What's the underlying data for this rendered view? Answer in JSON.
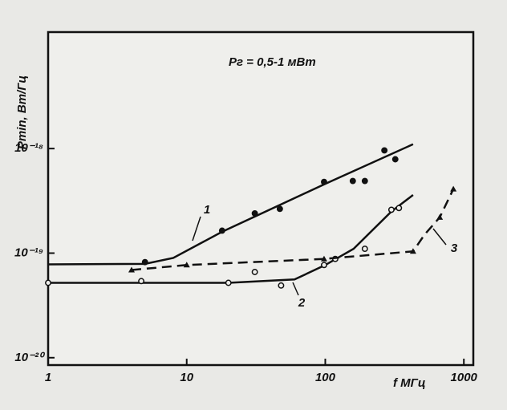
{
  "chart_data": {
    "type": "scatter",
    "title": "Pг = 0,5-1 мВт",
    "x_label": "f МГц",
    "y_label": "Pmin, Вт/Гц",
    "log_x": true,
    "log_y": true,
    "xlim": [
      1,
      1170
    ],
    "ylim": [
      8.5e-21,
      1.3e-17
    ],
    "xticks": [
      1,
      10,
      100,
      1000
    ],
    "yticks": [
      {
        "value": 1e-20,
        "label": "10⁻²⁰"
      },
      {
        "value": 1e-19,
        "label": "10⁻¹⁹"
      },
      {
        "value": 1e-18,
        "label": "10⁻¹⁸"
      }
    ],
    "series": [
      {
        "name": "1",
        "color": "#111111",
        "marker": "filled",
        "dash": false,
        "x": [
          5,
          18,
          31,
          47,
          98,
          158,
          193,
          267,
          320
        ],
        "values": [
          8.2e-20,
          1.64e-19,
          2.4e-19,
          2.65e-19,
          4.8e-19,
          4.9e-19,
          4.9e-19,
          9.6e-19,
          7.9e-19
        ],
        "curve": {
          "x": [
            1,
            5,
            8,
            18,
            100,
            430
          ],
          "y": [
            7.8e-20,
            7.9e-20,
            9e-20,
            1.6e-19,
            4.6e-19,
            1.1e-18
          ]
        }
      },
      {
        "name": "2",
        "color": "#111111",
        "marker": "open",
        "dash": false,
        "x": [
          1,
          4.7,
          20,
          31,
          48,
          98,
          118,
          193,
          300,
          340
        ],
        "values": [
          5.2e-20,
          5.4e-20,
          5.2e-20,
          6.6e-20,
          4.9e-20,
          7.7e-20,
          8.8e-20,
          1.1e-19,
          2.6e-19,
          2.7e-19
        ],
        "curve": {
          "x": [
            1,
            20,
            60,
            100,
            160,
            300,
            430
          ],
          "y": [
            5.2e-20,
            5.2e-20,
            5.6e-20,
            7.7e-20,
            1.1e-19,
            2.5e-19,
            3.6e-19
          ]
        }
      },
      {
        "name": "3",
        "color": "#111111",
        "marker": "triangle",
        "dash": true,
        "x": [
          4,
          10,
          98,
          430,
          670,
          840
        ],
        "values": [
          6.9e-20,
          7.7e-20,
          8.8e-20,
          1.04e-19,
          2.2e-19,
          4.1e-19
        ],
        "curve": {
          "x": [
            4,
            10,
            98,
            430,
            520,
            670,
            840
          ],
          "y": [
            6.9e-20,
            7.7e-20,
            8.8e-20,
            1.04e-19,
            1.5e-19,
            2.2e-19,
            4.1e-19
          ]
        }
      }
    ]
  }
}
